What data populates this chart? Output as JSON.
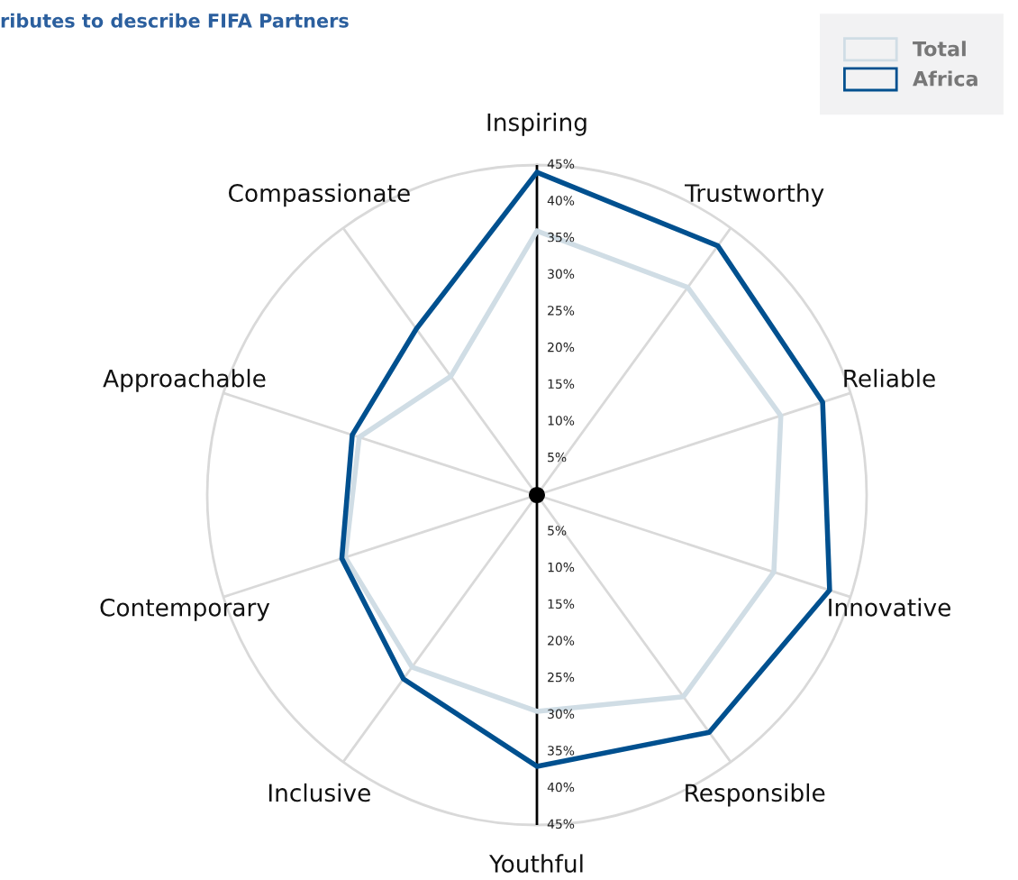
{
  "chart_data": {
    "type": "radar",
    "title": "ributes to describe FIFA Partners",
    "categories": [
      "Inspiring",
      "Trustworthy",
      "Reliable",
      "Innovative",
      "Responsible",
      "Youthful",
      "Inclusive",
      "Contemporary",
      "Approachable",
      "Compassionate"
    ],
    "series": [
      {
        "name": "Total",
        "color": "#d0dde5",
        "values": [
          36,
          35,
          35,
          34,
          34,
          29.5,
          29,
          27.5,
          25.5,
          20
        ]
      },
      {
        "name": "Africa",
        "color": "#00508f",
        "values": [
          44,
          42,
          41,
          42,
          40,
          37,
          31,
          28,
          26.5,
          28
        ]
      }
    ],
    "ylim": [
      0,
      45
    ],
    "yticks": [
      {
        "value": 5,
        "label": "5%"
      },
      {
        "value": 10,
        "label": "10%"
      },
      {
        "value": 15,
        "label": "15%"
      },
      {
        "value": 20,
        "label": "20%"
      },
      {
        "value": 25,
        "label": "25%"
      },
      {
        "value": 30,
        "label": "30%"
      },
      {
        "value": 35,
        "label": "35%"
      },
      {
        "value": 40,
        "label": "40%"
      },
      {
        "value": 45,
        "label": "45%"
      }
    ],
    "legend": "top right",
    "grid": true
  }
}
